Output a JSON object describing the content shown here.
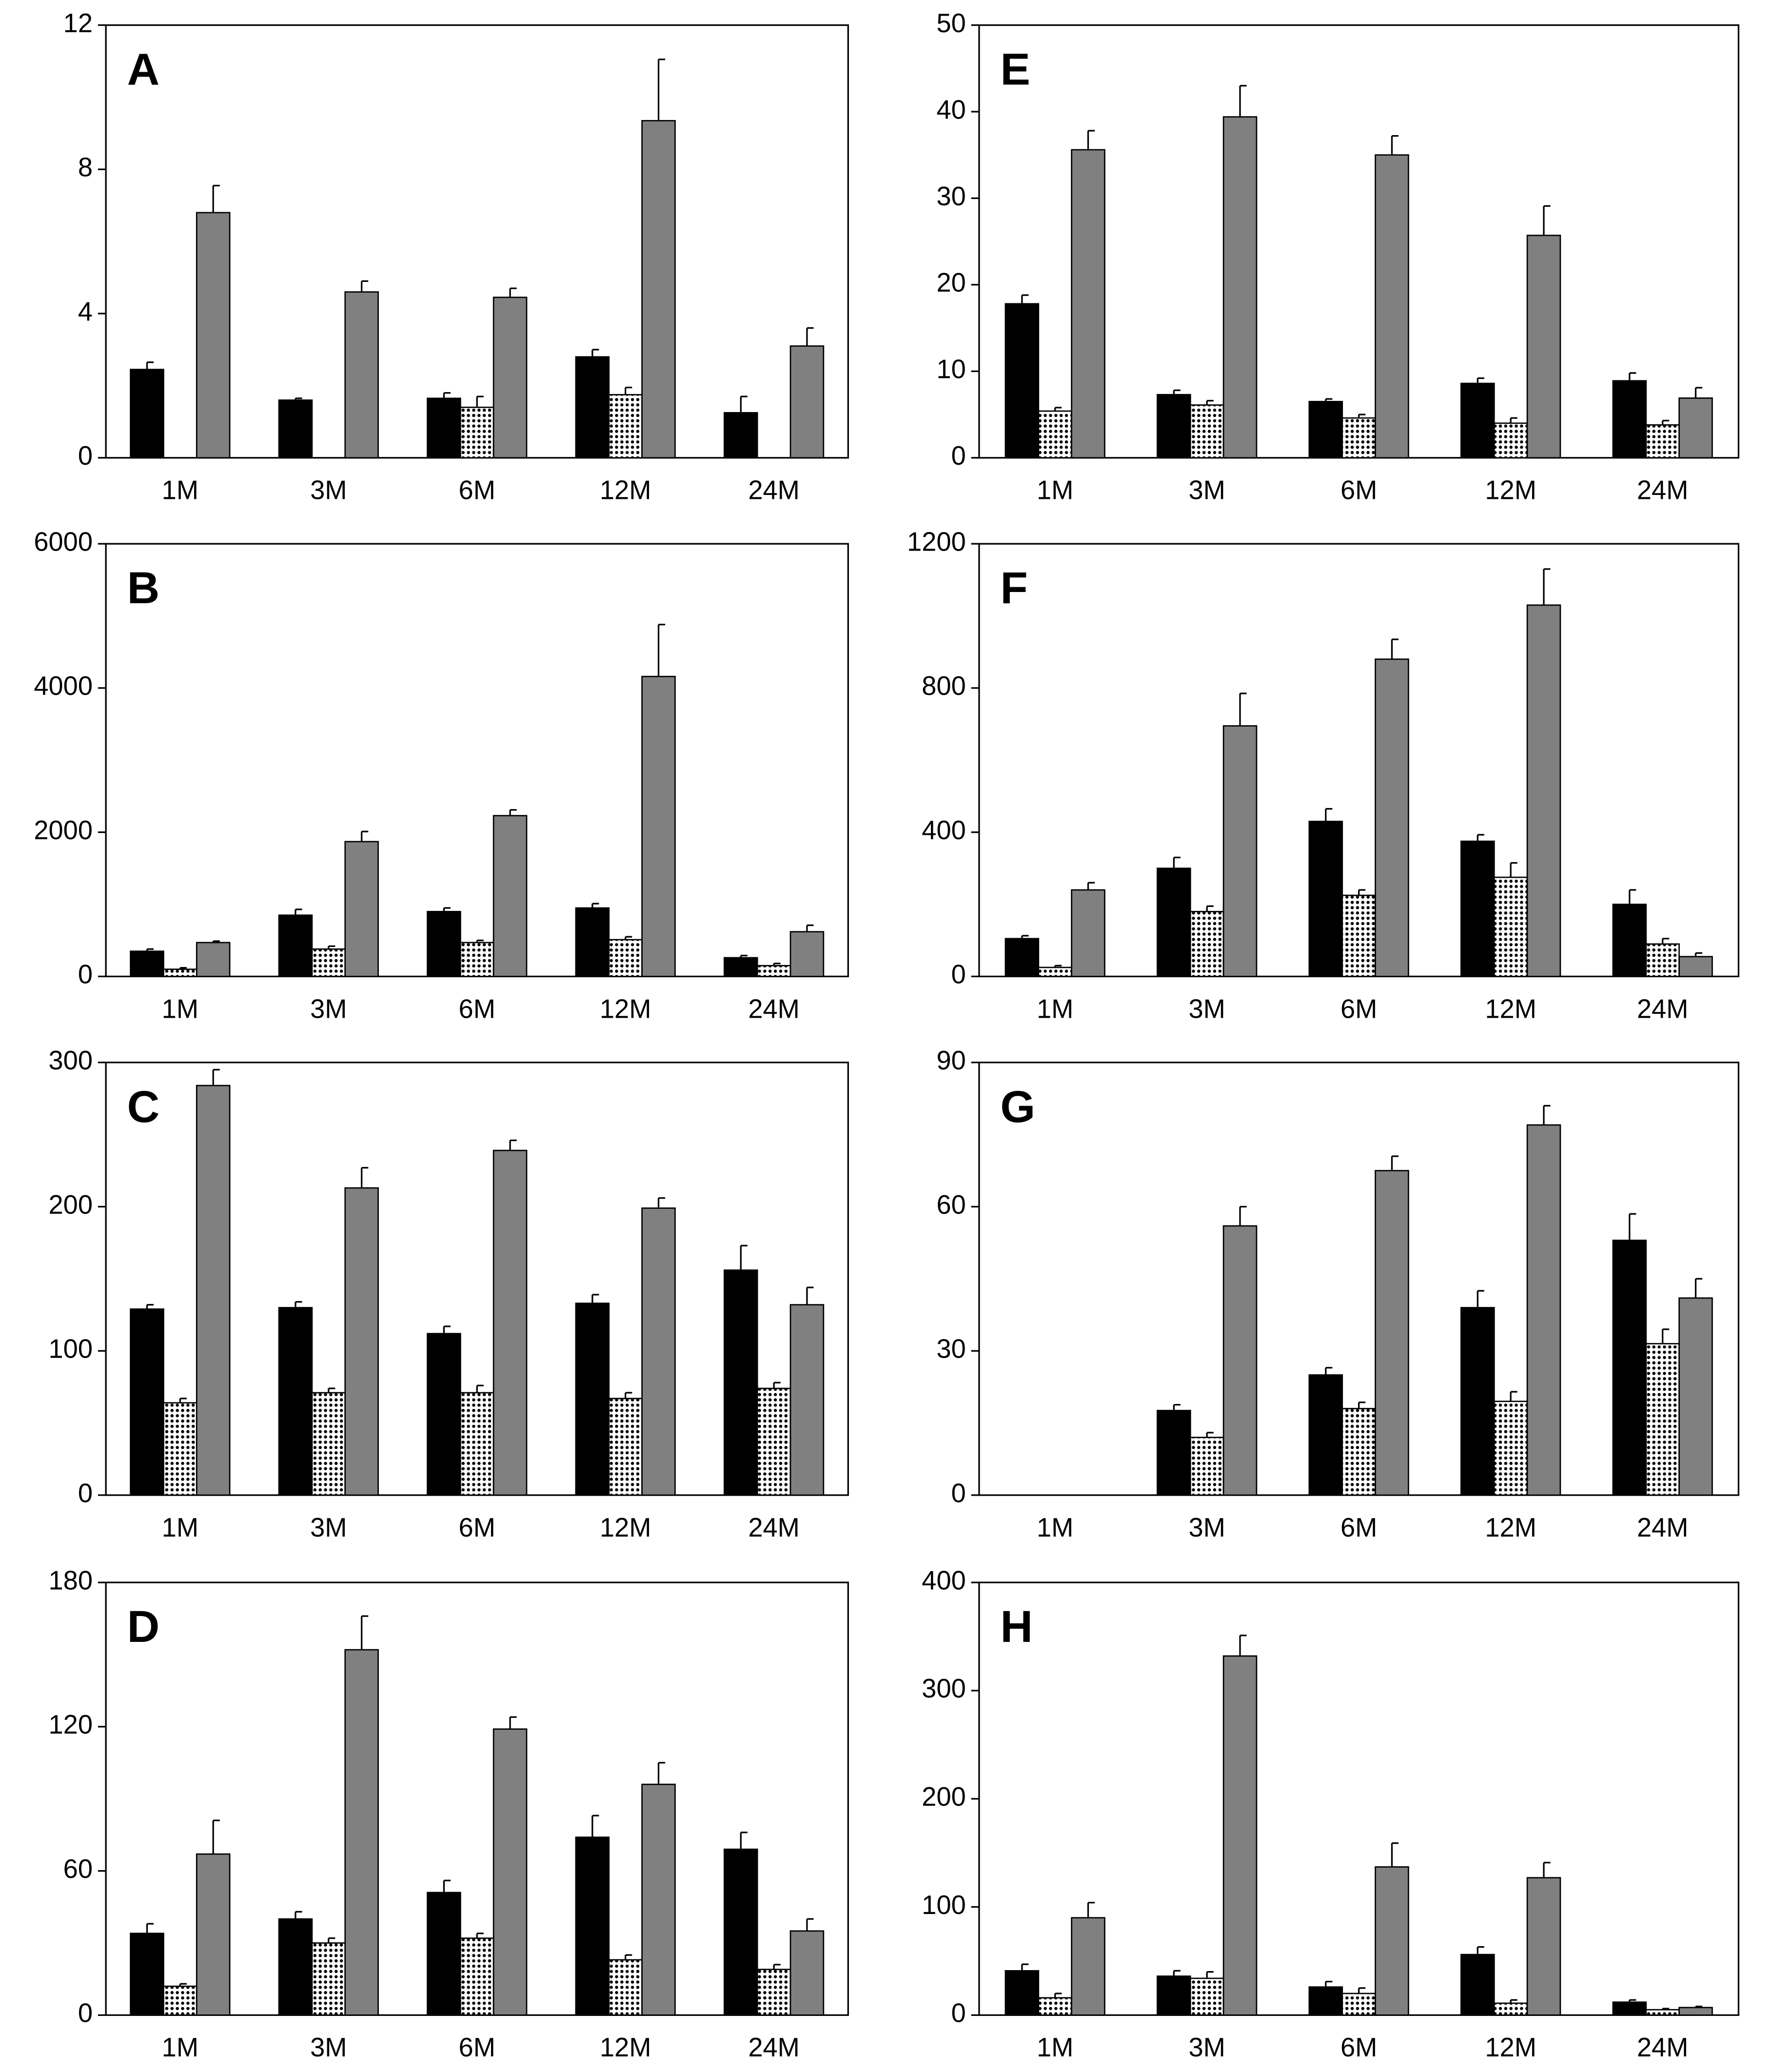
{
  "chart_data": [
    {
      "type": "bar",
      "label": "A",
      "categories": [
        "1M",
        "3M",
        "6M",
        "12M",
        "24M"
      ],
      "ylim": [
        0,
        12
      ],
      "yticks": [
        0,
        4,
        8,
        12
      ],
      "series": [
        {
          "color": "#000000",
          "values": [
            2.45,
            1.6,
            1.65,
            2.8,
            1.25
          ],
          "errors": [
            0.2,
            0.05,
            0.15,
            0.2,
            0.45
          ]
        },
        {
          "color": "#000000",
          "pattern": "dots",
          "values": [
            null,
            null,
            1.4,
            1.75,
            null
          ],
          "errors": [
            null,
            null,
            0.3,
            0.2,
            null
          ]
        },
        {
          "color": "#808080",
          "values": [
            6.8,
            4.6,
            4.45,
            9.35,
            3.1
          ],
          "errors": [
            0.75,
            0.3,
            0.25,
            1.7,
            0.5
          ]
        }
      ]
    },
    {
      "type": "bar",
      "label": "B",
      "categories": [
        "1M",
        "3M",
        "6M",
        "12M",
        "24M"
      ],
      "ylim": [
        0,
        6000
      ],
      "yticks": [
        0,
        2000,
        4000,
        6000
      ],
      "series": [
        {
          "color": "#000000",
          "values": [
            350,
            850,
            900,
            950,
            260
          ],
          "errors": [
            30,
            80,
            50,
            60,
            30
          ]
        },
        {
          "color": "#000000",
          "pattern": "dots",
          "values": [
            100,
            380,
            470,
            510,
            150
          ],
          "errors": [
            20,
            40,
            30,
            40,
            30
          ]
        },
        {
          "color": "#808080",
          "values": [
            470,
            1870,
            2230,
            4160,
            620
          ],
          "errors": [
            20,
            140,
            80,
            720,
            90
          ]
        }
      ]
    },
    {
      "type": "bar",
      "label": "C",
      "categories": [
        "1M",
        "3M",
        "6M",
        "12M",
        "24M"
      ],
      "ylim": [
        0,
        300
      ],
      "yticks": [
        0,
        100,
        200,
        300
      ],
      "series": [
        {
          "color": "#000000",
          "values": [
            129,
            130,
            112,
            133,
            156
          ],
          "errors": [
            3,
            4,
            5,
            6,
            17
          ]
        },
        {
          "color": "#000000",
          "pattern": "dots",
          "values": [
            64,
            71,
            71,
            67,
            74
          ],
          "errors": [
            3,
            3,
            5,
            4,
            4
          ]
        },
        {
          "color": "#808080",
          "values": [
            284,
            213,
            239,
            199,
            132
          ],
          "errors": [
            11,
            14,
            7,
            7,
            12
          ]
        }
      ]
    },
    {
      "type": "bar",
      "label": "D",
      "categories": [
        "1M",
        "3M",
        "6M",
        "12M",
        "24M"
      ],
      "ylim": [
        0,
        180
      ],
      "yticks": [
        0,
        60,
        120,
        180
      ],
      "series": [
        {
          "color": "#000000",
          "values": [
            34,
            40,
            51,
            74,
            69
          ],
          "errors": [
            4,
            3,
            5,
            9,
            7
          ]
        },
        {
          "color": "#000000",
          "pattern": "dots",
          "values": [
            12,
            30,
            32,
            23,
            19
          ],
          "errors": [
            1,
            2,
            2,
            2,
            2
          ]
        },
        {
          "color": "#808080",
          "values": [
            67,
            152,
            119,
            96,
            35
          ],
          "errors": [
            14,
            14,
            5,
            9,
            5
          ]
        }
      ]
    },
    {
      "type": "bar",
      "label": "E",
      "categories": [
        "1M",
        "3M",
        "6M",
        "12M",
        "24M"
      ],
      "ylim": [
        0,
        50
      ],
      "yticks": [
        0,
        10,
        20,
        30,
        40,
        50
      ],
      "series": [
        {
          "color": "#000000",
          "values": [
            17.8,
            7.3,
            6.5,
            8.6,
            8.9
          ],
          "errors": [
            1,
            0.5,
            0.3,
            0.6,
            0.9
          ]
        },
        {
          "color": "#000000",
          "pattern": "dots",
          "values": [
            5.4,
            6.1,
            4.6,
            4.0,
            3.8
          ],
          "errors": [
            0.4,
            0.5,
            0.4,
            0.6,
            0.5
          ]
        },
        {
          "color": "#808080",
          "values": [
            35.6,
            39.4,
            35.0,
            25.7,
            6.9
          ],
          "errors": [
            2.2,
            3.6,
            2.2,
            3.4,
            1.2
          ]
        }
      ]
    },
    {
      "type": "bar",
      "label": "F",
      "categories": [
        "1M",
        "3M",
        "6M",
        "12M",
        "24M"
      ],
      "ylim": [
        0,
        1200
      ],
      "yticks": [
        0,
        400,
        800,
        1200
      ],
      "series": [
        {
          "color": "#000000",
          "values": [
            105,
            300,
            430,
            375,
            200
          ],
          "errors": [
            8,
            30,
            35,
            18,
            40
          ]
        },
        {
          "color": "#000000",
          "pattern": "dots",
          "values": [
            25,
            180,
            225,
            275,
            90
          ],
          "errors": [
            5,
            15,
            15,
            40,
            15
          ]
        },
        {
          "color": "#808080",
          "values": [
            240,
            695,
            880,
            1030,
            55
          ],
          "errors": [
            20,
            90,
            55,
            100,
            10
          ]
        }
      ]
    },
    {
      "type": "bar",
      "label": "G",
      "categories": [
        "1M",
        "3M",
        "6M",
        "12M",
        "24M"
      ],
      "ylim": [
        0,
        90
      ],
      "yticks": [
        0,
        30,
        60,
        90
      ],
      "series": [
        {
          "color": "#000000",
          "values": [
            null,
            17.6,
            25,
            39,
            53
          ],
          "errors": [
            null,
            1.2,
            1.5,
            3.5,
            5.5
          ]
        },
        {
          "color": "#000000",
          "pattern": "dots",
          "values": [
            null,
            12,
            18,
            19.5,
            31.5
          ],
          "errors": [
            null,
            1,
            1.3,
            2,
            3
          ]
        },
        {
          "color": "#808080",
          "values": [
            null,
            56,
            67.5,
            77,
            41
          ],
          "errors": [
            null,
            4,
            3,
            4,
            4
          ]
        }
      ]
    },
    {
      "type": "bar",
      "label": "H",
      "categories": [
        "1M",
        "3M",
        "6M",
        "12M",
        "24M"
      ],
      "ylim": [
        0,
        400
      ],
      "yticks": [
        0,
        100,
        200,
        300,
        400
      ],
      "series": [
        {
          "color": "#000000",
          "values": [
            41,
            36,
            26,
            56,
            12
          ],
          "errors": [
            6,
            5,
            5,
            7,
            2
          ]
        },
        {
          "color": "#000000",
          "pattern": "dots",
          "values": [
            16,
            34,
            20,
            11,
            5
          ],
          "errors": [
            4,
            6,
            5,
            3,
            1
          ]
        },
        {
          "color": "#808080",
          "values": [
            90,
            332,
            137,
            127,
            7
          ],
          "errors": [
            14,
            19,
            22,
            14,
            1
          ]
        }
      ]
    }
  ]
}
